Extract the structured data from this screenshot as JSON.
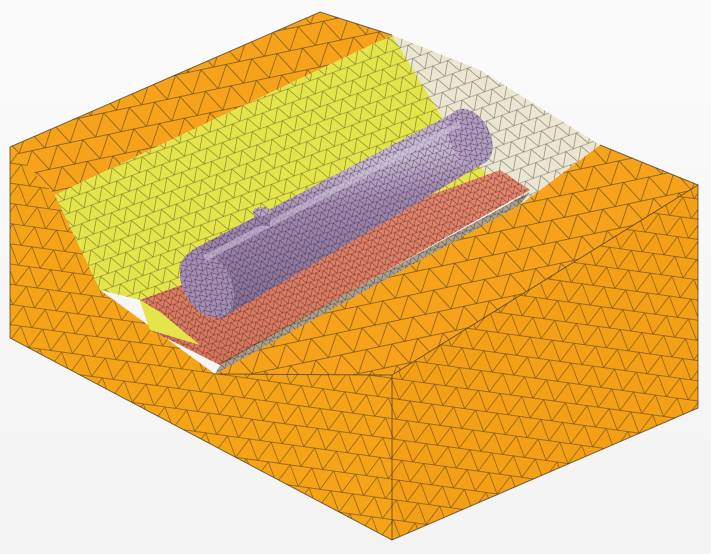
{
  "scene": {
    "subject": "finite-element-mesh",
    "colors": {
      "background": "#f5f5f5",
      "soil": "#f6a31b",
      "soil_side_dark": "#e89a12",
      "slope_yellow": "#e6e64a",
      "slope_white": "#ebe6d2",
      "trench_bed": "#e7856e",
      "pipe": "#a287b4",
      "pipe_highlight": "#c0acd0",
      "mesh_line": "#2e2a1e"
    },
    "parts": [
      {
        "id": "soil-block",
        "icon": "box"
      },
      {
        "id": "slope-left",
        "icon": "plane"
      },
      {
        "id": "slope-right",
        "icon": "plane"
      },
      {
        "id": "trench-bed",
        "icon": "plane"
      },
      {
        "id": "pipe",
        "icon": "cylinder"
      },
      {
        "id": "pipe-nozzle",
        "icon": "cylinder"
      }
    ]
  }
}
